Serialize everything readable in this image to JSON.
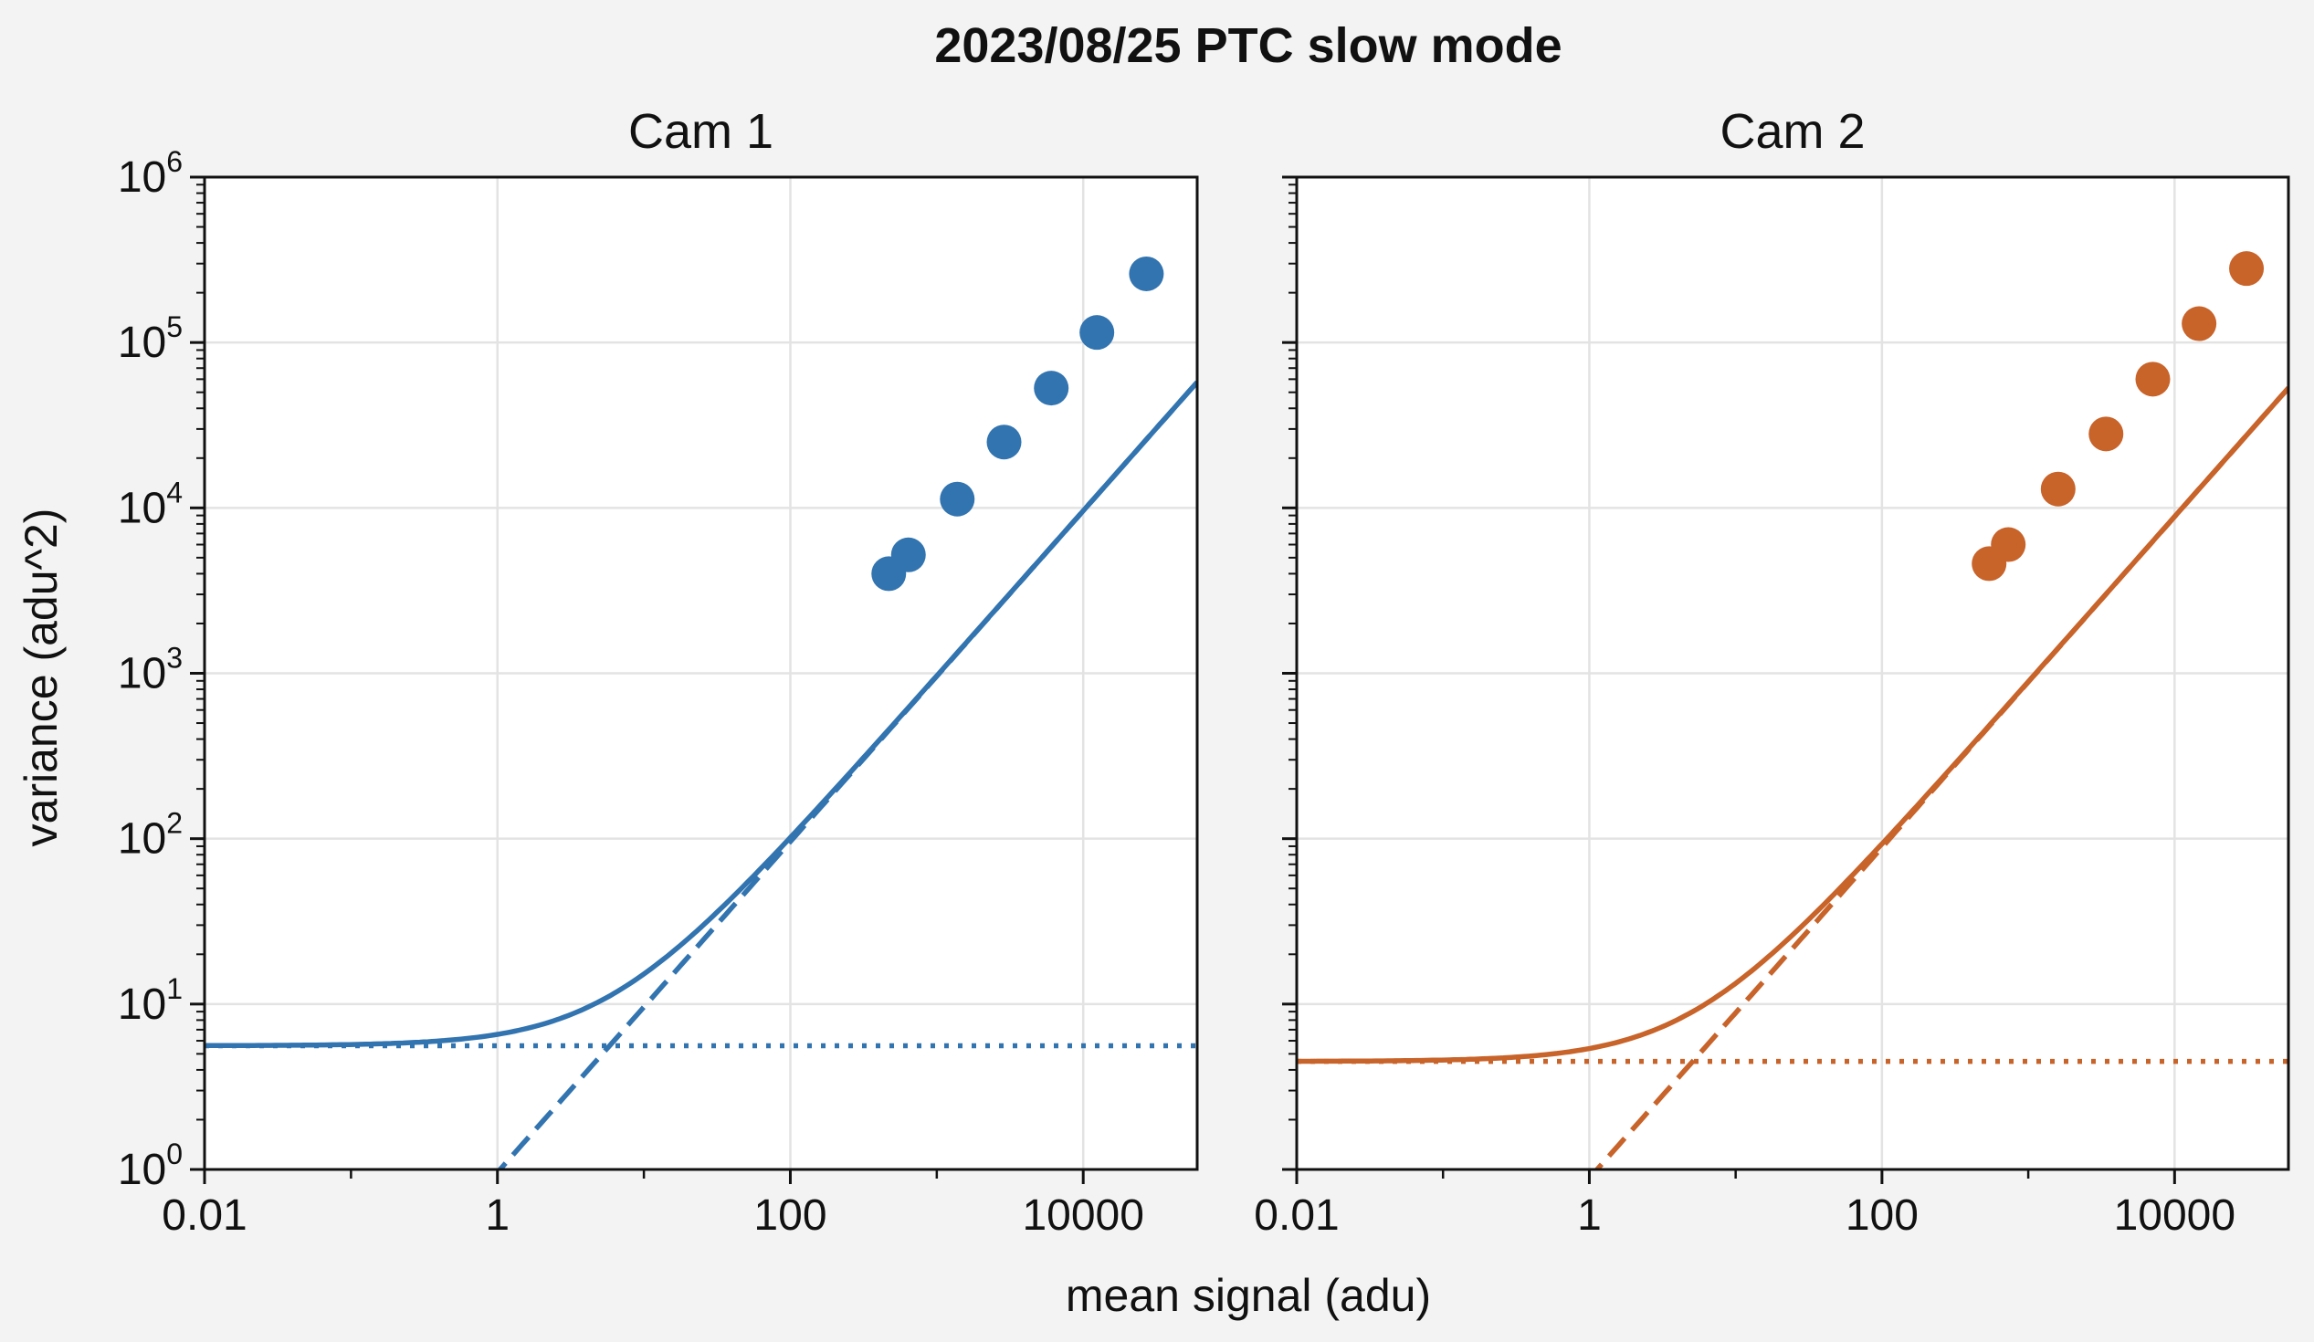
{
  "chart_data": {
    "type": "scatter",
    "title": "2023/08/25 PTC slow mode",
    "xlabel": "mean signal (adu)",
    "ylabel": "variance (adu^2)",
    "xscale": "log",
    "yscale": "log",
    "xlim": [
      0.01,
      60000
    ],
    "ylim": [
      1,
      1000000
    ],
    "grid": true,
    "xtick_labels": [
      "0.01",
      "1",
      "100",
      "10000"
    ],
    "ytick_labels": [
      {
        "base": "10",
        "exp": "0"
      },
      {
        "base": "10",
        "exp": "1"
      },
      {
        "base": "10",
        "exp": "2"
      },
      {
        "base": "10",
        "exp": "3"
      },
      {
        "base": "10",
        "exp": "4"
      },
      {
        "base": "10",
        "exp": "5"
      },
      {
        "base": "10",
        "exp": "6"
      }
    ],
    "panels": [
      {
        "title": "Cam 1",
        "color": "#3274b0",
        "points": {
          "x": [
            470,
            640,
            1380,
            2880,
            6050,
            12400,
            27000
          ],
          "y": [
            4000,
            5200,
            11300,
            25000,
            53000,
            115000,
            260000
          ]
        },
        "fit": {
          "read_noise_variance": 5.6,
          "gain_slope": 0.96
        },
        "curves": [
          "total",
          "shot",
          "read"
        ]
      },
      {
        "title": "Cam 2",
        "color": "#c8632a",
        "points": {
          "x": [
            540,
            730,
            1600,
            3400,
            7100,
            14700,
            31000
          ],
          "y": [
            4600,
            6000,
            13000,
            28000,
            60000,
            130000,
            280000
          ]
        },
        "fit": {
          "read_noise_variance": 4.5,
          "gain_slope": 0.885
        },
        "curves": [
          "total",
          "shot",
          "read"
        ]
      }
    ]
  }
}
